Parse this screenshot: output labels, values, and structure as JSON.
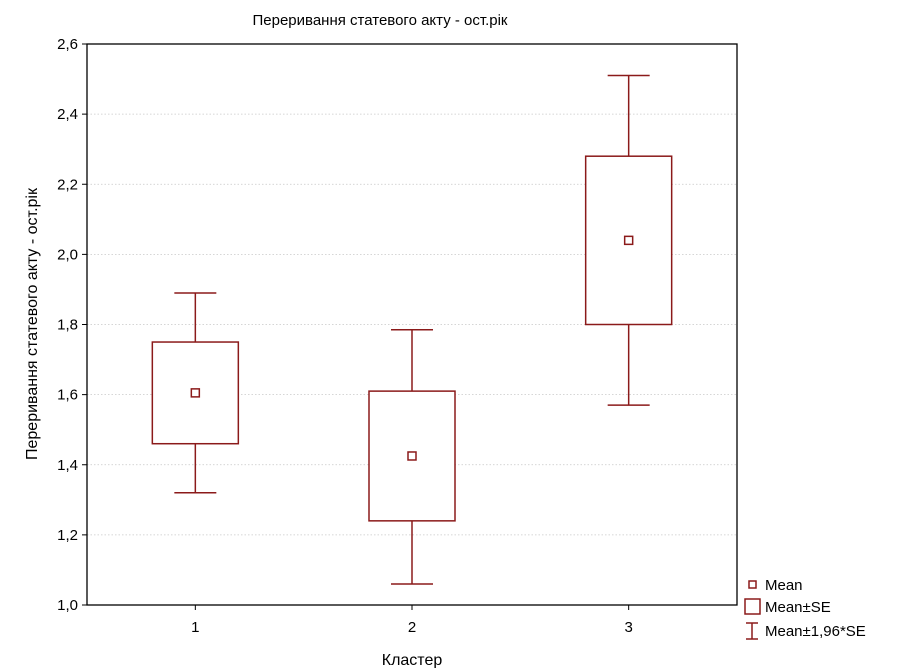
{
  "chart_data": {
    "type": "boxplot",
    "title": "Переривання статевого акту - ост.рік",
    "xlabel": "Кластер",
    "ylabel": "Переривання статевого акту - ост.рік",
    "ylim": [
      1.0,
      2.6
    ],
    "yticks": [
      "1,0",
      "1,2",
      "1,4",
      "1,6",
      "1,8",
      "2,0",
      "2,2",
      "2,4",
      "2,6"
    ],
    "ytick_values": [
      1.0,
      1.2,
      1.4,
      1.6,
      1.8,
      2.0,
      2.2,
      2.4,
      2.6
    ],
    "categories": [
      "1",
      "2",
      "3"
    ],
    "grid": "horizontal dotted",
    "legend_position": "bottom-right, outside plot",
    "color": "#8b1a1a",
    "series": [
      {
        "category": "1",
        "mean": 1.605,
        "se_low": 1.46,
        "se_high": 1.75,
        "ci_low": 1.32,
        "ci_high": 1.89
      },
      {
        "category": "2",
        "mean": 1.425,
        "se_low": 1.24,
        "se_high": 1.61,
        "ci_low": 1.06,
        "ci_high": 1.785
      },
      {
        "category": "3",
        "mean": 2.04,
        "se_low": 1.8,
        "se_high": 2.28,
        "ci_low": 1.57,
        "ci_high": 2.51
      }
    ],
    "legend": [
      {
        "label": "Mean",
        "symbol": "square-marker-icon"
      },
      {
        "label": "Mean±SE",
        "symbol": "box-icon"
      },
      {
        "label": "Mean±1,96*SE",
        "symbol": "whisker-icon"
      }
    ]
  }
}
